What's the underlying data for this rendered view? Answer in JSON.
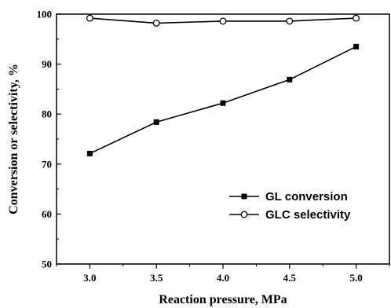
{
  "chart_data": {
    "type": "line",
    "xlabel": "Reaction pressure, MPa",
    "ylabel": "Conversion or selectivity, %",
    "x": [
      3.0,
      3.5,
      4.0,
      4.5,
      5.0
    ],
    "xticks": [
      "3.0",
      "3.5",
      "4.0",
      "4.5",
      "5.0"
    ],
    "yticks": [
      "50",
      "60",
      "70",
      "80",
      "90",
      "100"
    ],
    "xlim": [
      2.75,
      5.25
    ],
    "ylim": [
      50,
      100
    ],
    "grid": false,
    "legend_position": "bottom-right",
    "series": [
      {
        "name": "GL conversion",
        "marker": "filled-square",
        "color": "#000000",
        "values": [
          72.1,
          78.4,
          82.2,
          86.9,
          93.5
        ]
      },
      {
        "name": "GLC selectivity",
        "marker": "open-circle",
        "color": "#000000",
        "values": [
          99.2,
          98.2,
          98.6,
          98.6,
          99.2
        ]
      }
    ]
  }
}
